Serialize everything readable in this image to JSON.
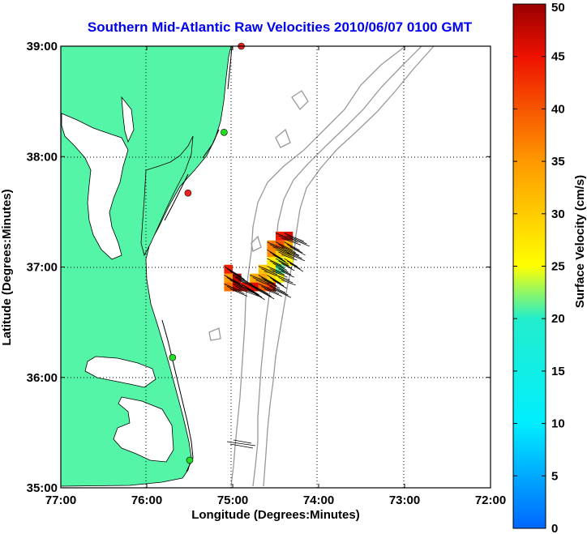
{
  "chart_data": {
    "type": "map",
    "title": "Southern Mid-Atlantic Raw Velocities 2010/06/07 0100 GMT",
    "xlabel": "Longitude (Degrees:Minutes)",
    "ylabel": "Latitude (Degrees:Minutes)",
    "xlim": [
      -77,
      -72
    ],
    "ylim": [
      35,
      39
    ],
    "x_ticks": [
      {
        "value": -77,
        "label": "77:00"
      },
      {
        "value": -76,
        "label": "76:00"
      },
      {
        "value": -75,
        "label": "75:00"
      },
      {
        "value": -74,
        "label": "74:00"
      },
      {
        "value": -73,
        "label": "73:00"
      },
      {
        "value": -72,
        "label": "72:00"
      }
    ],
    "y_ticks": [
      {
        "value": 35,
        "label": "35:00"
      },
      {
        "value": 36,
        "label": "36:00"
      },
      {
        "value": 37,
        "label": "37:00"
      },
      {
        "value": 38,
        "label": "38:00"
      },
      {
        "value": 39,
        "label": "39:00"
      }
    ],
    "grid": "dotted",
    "colorbar": {
      "label": "Surface Velocity (cm/s)",
      "min": 0,
      "max": 50,
      "ticks": [
        {
          "value": 0,
          "label": "0"
        },
        {
          "value": 5,
          "label": "5"
        },
        {
          "value": 10,
          "label": "10"
        },
        {
          "value": 15,
          "label": "15"
        },
        {
          "value": 20,
          "label": "20"
        },
        {
          "value": 25,
          "label": "25"
        },
        {
          "value": 30,
          "label": "30"
        },
        {
          "value": 35,
          "label": "35"
        },
        {
          "value": 40,
          "label": "40"
        },
        {
          "value": 45,
          "label": "45"
        },
        {
          "value": 50,
          "label": "50"
        }
      ]
    },
    "colors": {
      "land": "#55f5a8",
      "water": "#ffffff",
      "bathymetry": "#999999",
      "title": "#0000ee",
      "site_active": "#22dd22",
      "site_inactive": "#ee2222"
    },
    "stations": [
      {
        "lon": -74.9,
        "lat": 39.0,
        "status": "inactive"
      },
      {
        "lon": -75.1,
        "lat": 38.22,
        "status": "active"
      },
      {
        "lon": -75.52,
        "lat": 37.67,
        "status": "inactive"
      },
      {
        "lon": -75.7,
        "lat": 36.18,
        "status": "active"
      },
      {
        "lon": -75.5,
        "lat": 35.25,
        "status": "active"
      }
    ],
    "velocity_cells": [
      {
        "lon": -74.45,
        "lat": 37.28,
        "speed": 44
      },
      {
        "lon": -74.35,
        "lat": 37.28,
        "speed": 46
      },
      {
        "lon": -74.45,
        "lat": 37.2,
        "speed": 40
      },
      {
        "lon": -74.35,
        "lat": 37.2,
        "speed": 33
      },
      {
        "lon": -74.55,
        "lat": 37.13,
        "speed": 36
      },
      {
        "lon": -74.45,
        "lat": 37.13,
        "speed": 30
      },
      {
        "lon": -74.35,
        "lat": 37.13,
        "speed": 28
      },
      {
        "lon": -74.55,
        "lat": 37.05,
        "speed": 27
      },
      {
        "lon": -74.45,
        "lat": 37.05,
        "speed": 24
      },
      {
        "lon": -74.35,
        "lat": 37.05,
        "speed": 26
      },
      {
        "lon": -74.65,
        "lat": 36.98,
        "speed": 31
      },
      {
        "lon": -74.55,
        "lat": 36.98,
        "speed": 27
      },
      {
        "lon": -74.45,
        "lat": 36.98,
        "speed": 21
      },
      {
        "lon": -74.65,
        "lat": 36.9,
        "speed": 34
      },
      {
        "lon": -74.55,
        "lat": 36.9,
        "speed": 29
      },
      {
        "lon": -74.45,
        "lat": 36.9,
        "speed": 25
      },
      {
        "lon": -74.65,
        "lat": 36.82,
        "speed": 39
      },
      {
        "lon": -74.55,
        "lat": 36.82,
        "speed": 43
      },
      {
        "lon": -74.75,
        "lat": 36.82,
        "speed": 46
      },
      {
        "lon": -74.85,
        "lat": 36.82,
        "speed": 45
      },
      {
        "lon": -74.95,
        "lat": 36.82,
        "speed": 47
      },
      {
        "lon": -75.05,
        "lat": 36.82,
        "speed": 38
      },
      {
        "lon": -74.95,
        "lat": 36.9,
        "speed": 48
      },
      {
        "lon": -75.05,
        "lat": 36.9,
        "speed": 35
      },
      {
        "lon": -75.05,
        "lat": 36.98,
        "speed": 44
      },
      {
        "lon": -74.75,
        "lat": 36.9,
        "speed": 33
      },
      {
        "lon": -74.55,
        "lat": 37.2,
        "speed": 37
      }
    ]
  }
}
